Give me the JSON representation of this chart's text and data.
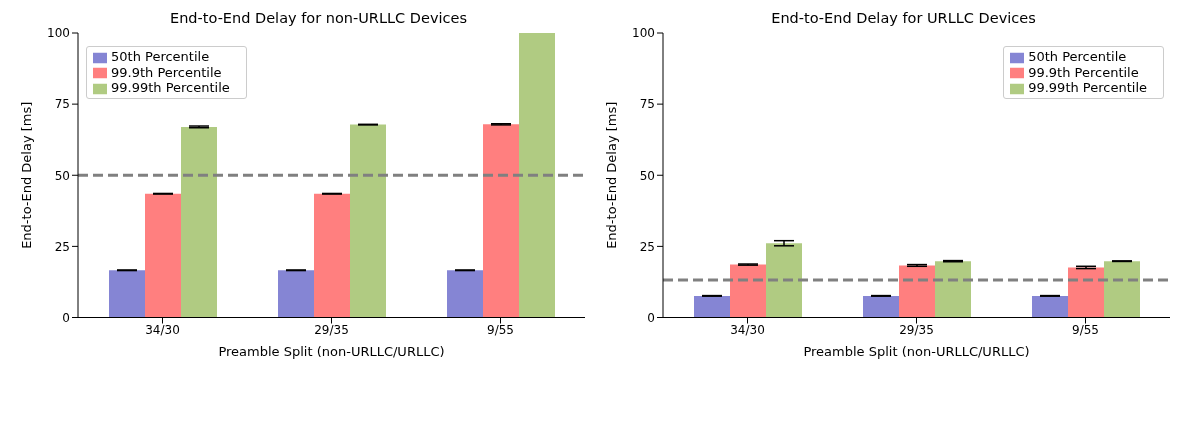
{
  "chart_data": [
    {
      "type": "bar",
      "title": "End-to-End Delay for non-URLLC Devices",
      "xlabel": "Preamble Split (non-URLLC/URLLC)",
      "ylabel": "End-to-End Delay [ms]",
      "categories": [
        "34/30",
        "29/35",
        "9/55"
      ],
      "series": [
        {
          "name": "50th Percentile",
          "color": "#8585d4",
          "values": [
            16.6,
            16.6,
            16.6
          ],
          "errors": [
            0.1,
            0.1,
            0.1
          ]
        },
        {
          "name": "99.9th Percentile",
          "color": "#ff7f7f",
          "values": [
            43.5,
            43.5,
            67.9
          ],
          "errors": [
            0.1,
            0.1,
            0.2
          ]
        },
        {
          "name": "99.99th Percentile",
          "color": "#b0cb82",
          "values": [
            67.0,
            67.8,
            100
          ],
          "errors": [
            0.3,
            0.1,
            null
          ]
        }
      ],
      "ylim": [
        0,
        100
      ],
      "yticks": [
        0,
        25,
        50,
        75,
        100
      ],
      "grid": false,
      "legend": "top left",
      "ref_lines": [
        {
          "axis": "y",
          "value": 50,
          "color": "#808080",
          "line_style": "dashed"
        }
      ]
    },
    {
      "type": "bar",
      "title": "End-to-End Delay for URLLC Devices",
      "xlabel": "Preamble Split (non-URLLC/URLLC)",
      "ylabel": "End-to-End Delay [ms]",
      "categories": [
        "34/30",
        "29/35",
        "9/55"
      ],
      "series": [
        {
          "name": "50th Percentile",
          "color": "#8585d4",
          "values": [
            7.6,
            7.6,
            7.6
          ],
          "errors": [
            0.1,
            0.1,
            0.1
          ]
        },
        {
          "name": "99.9th Percentile",
          "color": "#ff7f7f",
          "values": [
            18.6,
            18.3,
            17.6
          ],
          "errors": [
            0.2,
            0.3,
            0.4
          ]
        },
        {
          "name": "99.99th Percentile",
          "color": "#b0cb82",
          "values": [
            26.1,
            19.8,
            19.8
          ],
          "errors": [
            0.9,
            0.2,
            0.1
          ]
        }
      ],
      "ylim": [
        0,
        100
      ],
      "yticks": [
        0,
        25,
        50,
        75,
        100
      ],
      "grid": false,
      "legend": "top right",
      "ref_lines": [
        {
          "axis": "y",
          "value": 13.2,
          "color": "#808080",
          "line_style": "dashed"
        }
      ]
    }
  ]
}
